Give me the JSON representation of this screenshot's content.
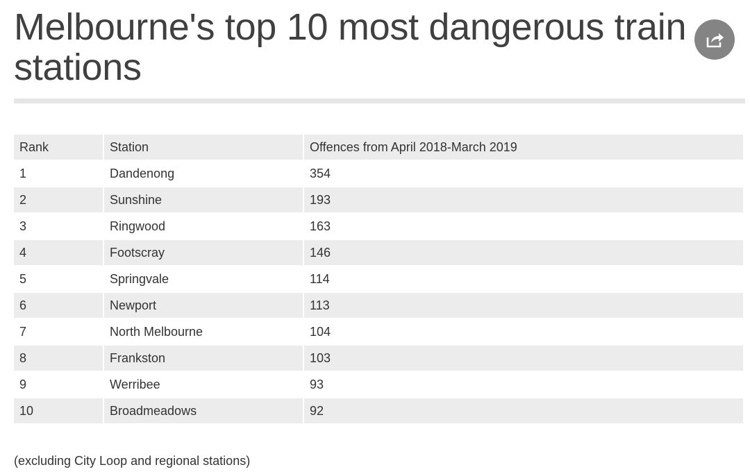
{
  "title": "Melbourne's top 10 most dangerous train stations",
  "share_icon": "share-icon",
  "table": {
    "headers": [
      "Rank",
      "Station",
      "Offences from April 2018-March 2019"
    ],
    "rows": [
      [
        "1",
        "Dandenong",
        "354"
      ],
      [
        "2",
        "Sunshine",
        "193"
      ],
      [
        "3",
        "Ringwood",
        "163"
      ],
      [
        "4",
        "Footscray",
        "146"
      ],
      [
        "5",
        "Springvale",
        "114"
      ],
      [
        "6",
        "Newport",
        "113"
      ],
      [
        "7",
        "North Melbourne",
        "104"
      ],
      [
        "8",
        "Frankston",
        "103"
      ],
      [
        "9",
        "Werribee",
        "93"
      ],
      [
        "10",
        "Broadmeadows",
        "92"
      ]
    ]
  },
  "footnote": "(excluding City Loop and regional stations)"
}
